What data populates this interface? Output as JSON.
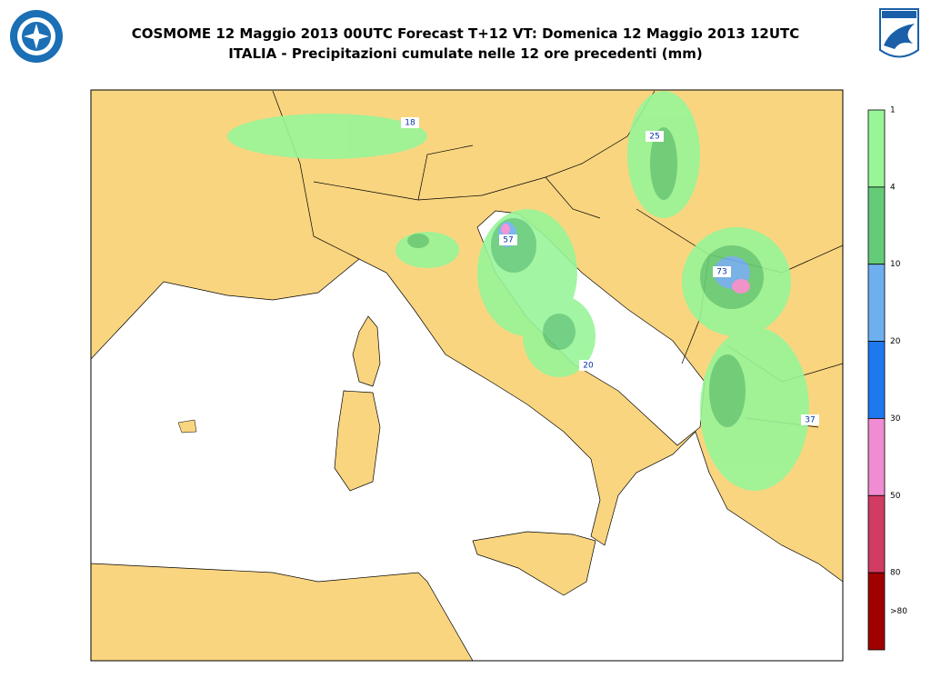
{
  "header": {
    "title": "COSMOME 12 Maggio 2013 00UTC Forecast T+12 VT: Domenica 12 Maggio 2013 12UTC",
    "subtitle": "ITALIA - Precipitazioni cumulate nelle 12 ore precedenti (mm)"
  },
  "map": {
    "maxima": [
      "18",
      "25",
      "57",
      "73",
      "20",
      "37"
    ]
  },
  "colorbar": {
    "labels": [
      "1",
      "4",
      "10",
      "20",
      "30",
      "50",
      "80",
      ">80"
    ],
    "colors": [
      "#98f598",
      "#64cc78",
      "#6eaff0",
      "#1e78f0",
      "#f08cd2",
      "#d23c64",
      "#a00000"
    ]
  }
}
